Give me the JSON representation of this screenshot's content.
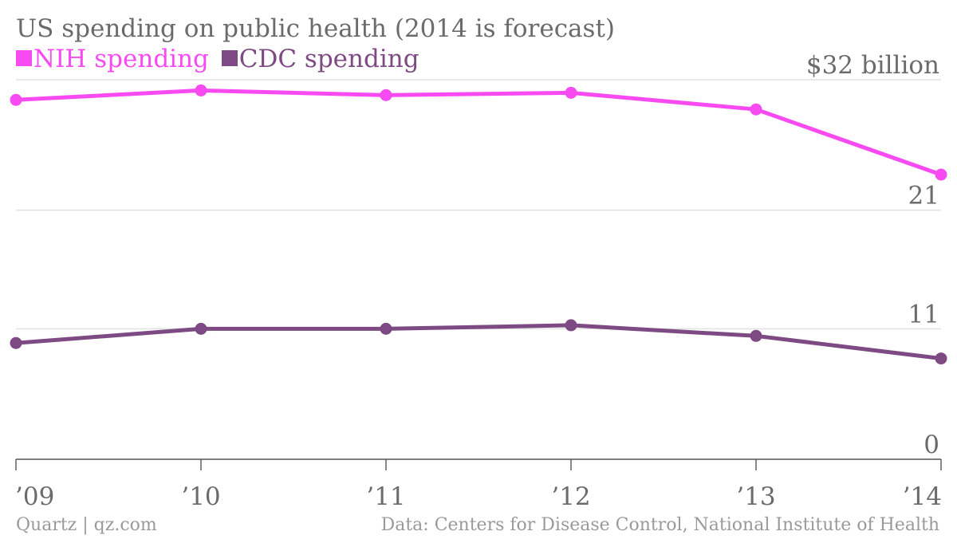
{
  "chart_data": {
    "type": "line",
    "title": "US spending on public health (2014 is forecast)",
    "categories": [
      "’09",
      "’10",
      "’11",
      "’12",
      "’13",
      "’14"
    ],
    "y_ticks": [
      {
        "value": 32,
        "label": "$32 billion"
      },
      {
        "value": 21,
        "label": "21"
      },
      {
        "value": 11,
        "label": "11"
      },
      {
        "value": 0,
        "label": "0"
      }
    ],
    "ylim": [
      0,
      32
    ],
    "grid": true,
    "legend_position": "top-left",
    "series": [
      {
        "name": "NIH spending",
        "color": "#f74bf1",
        "values": [
          30.3,
          31.1,
          30.7,
          30.9,
          29.5,
          24.0
        ]
      },
      {
        "name": "CDC spending",
        "color": "#7e4a83",
        "values": [
          9.8,
          11.0,
          11.0,
          11.3,
          10.4,
          8.5
        ]
      }
    ]
  },
  "footer": {
    "source_left": "Quartz | qz.com",
    "source_right": "Data: Centers for Disease Control, National Institute of Health"
  }
}
